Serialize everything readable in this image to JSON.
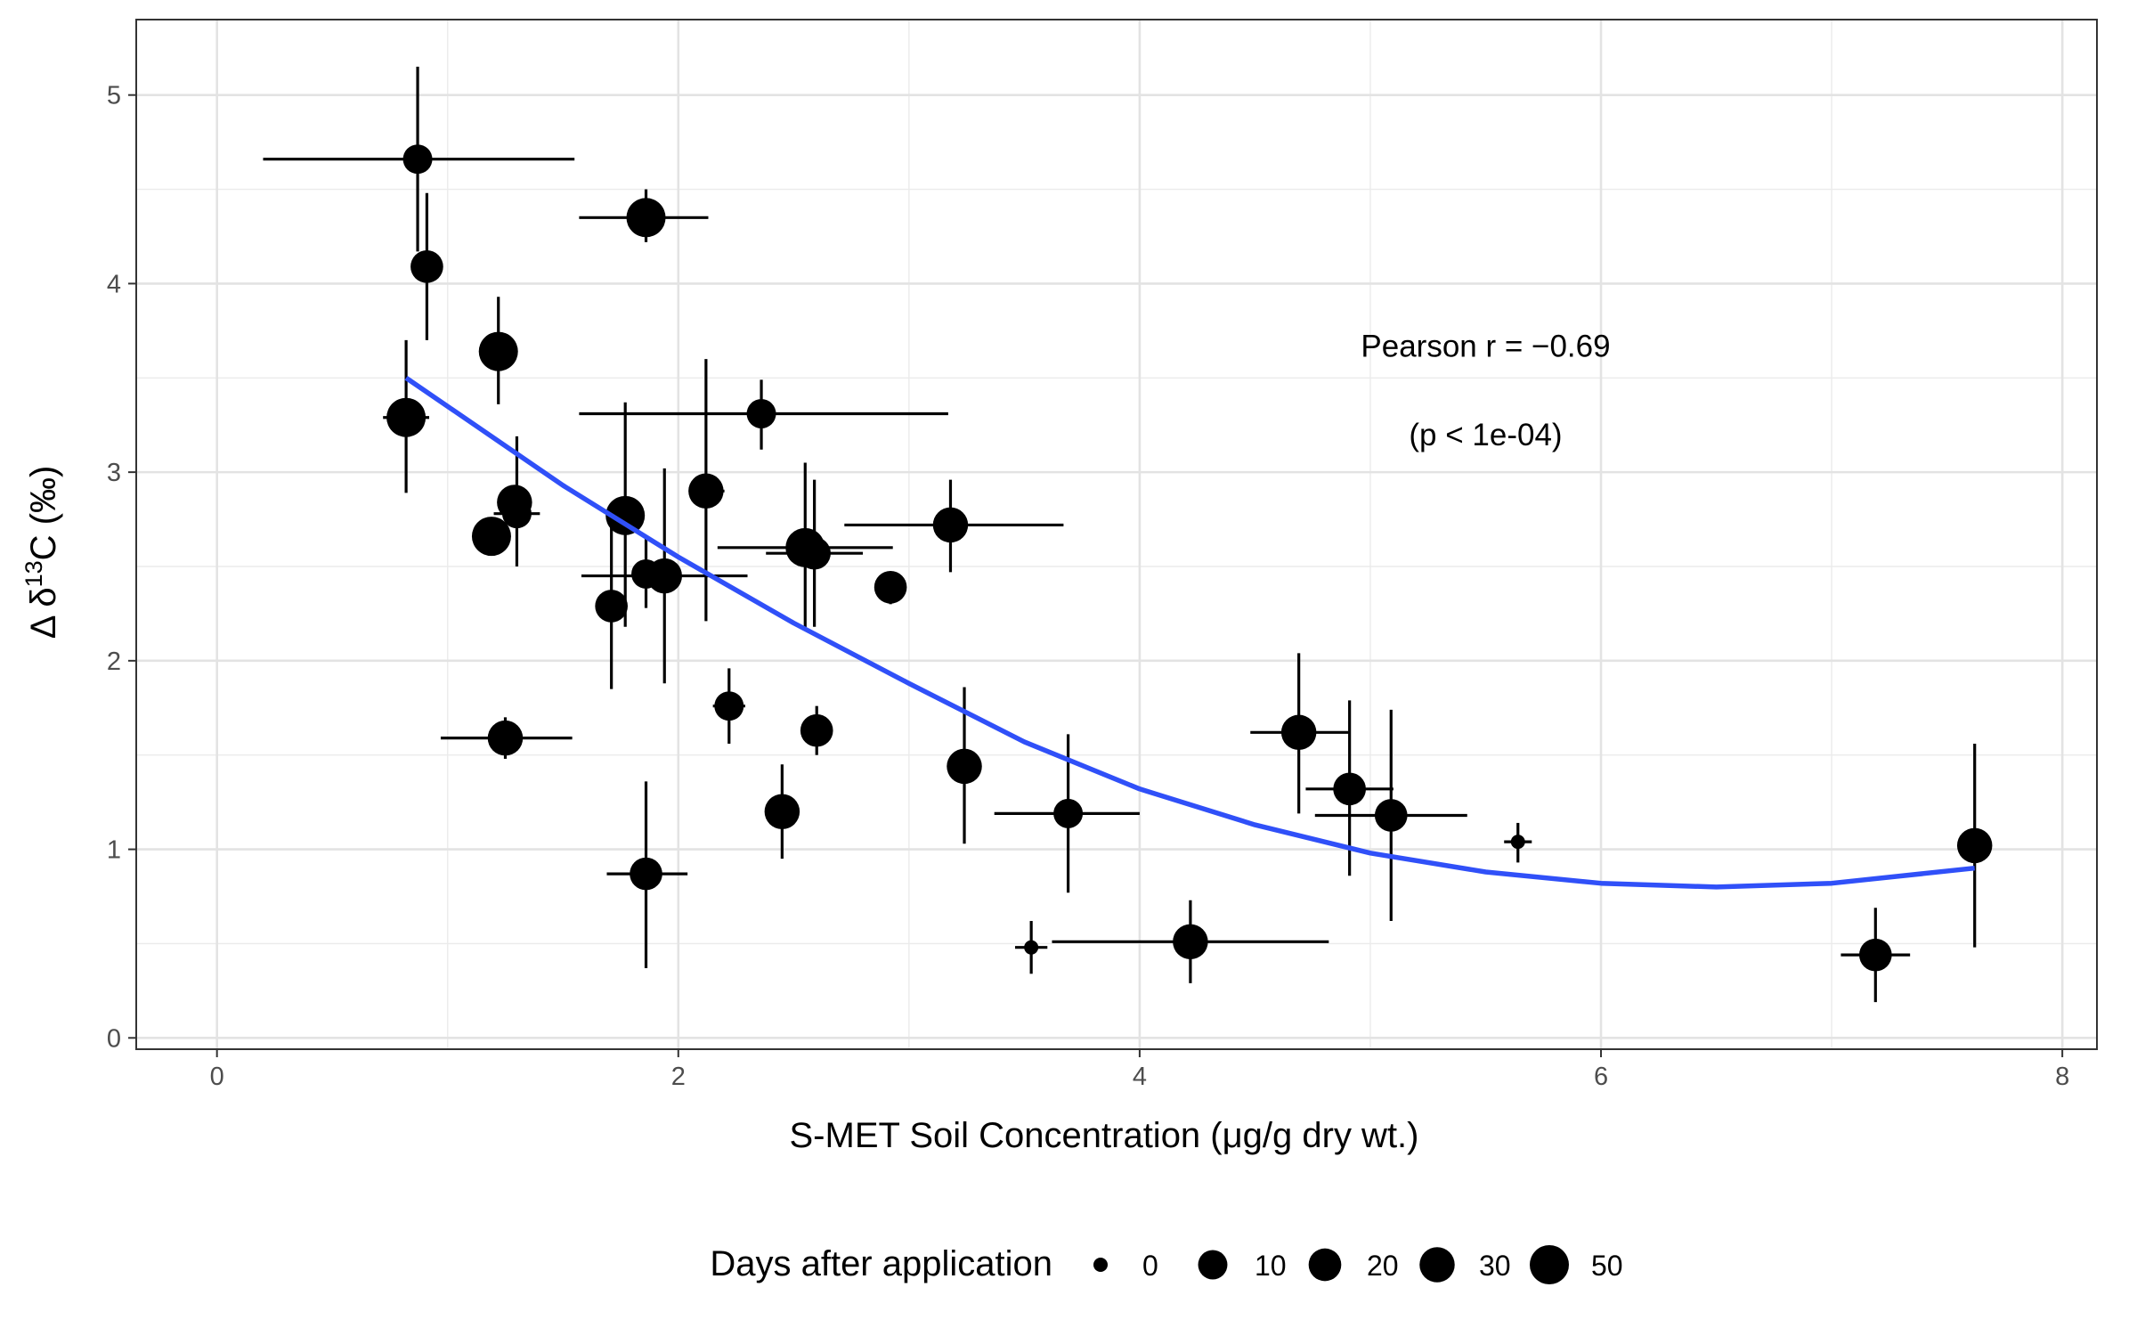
{
  "chart_data": {
    "type": "scatter",
    "xlabel": "S-MET Soil Concentration  (μg/g dry wt.)",
    "ylabel_prefix": "Δ δ",
    "ylabel_sup": "13",
    "ylabel_suffix": "C (‰)",
    "xlim": [
      -0.35,
      8.15
    ],
    "ylim": [
      -0.06,
      5.4
    ],
    "x_ticks": [
      0,
      2,
      4,
      6,
      8
    ],
    "y_ticks": [
      0,
      1,
      2,
      3,
      4,
      5
    ],
    "x_tick_labels": [
      "0",
      "2",
      "4",
      "6",
      "8"
    ],
    "y_tick_labels": [
      "0",
      "1",
      "2",
      "3",
      "4",
      "5"
    ],
    "grid": true,
    "annotation": {
      "line1": "Pearson r = −0.69",
      "line2": "(p < 1e-04)",
      "x": 5.5,
      "y1": 3.67,
      "y2": 3.2
    },
    "legend": {
      "title": "Days after application",
      "position": "bottom",
      "levels": [
        0,
        10,
        20,
        30,
        50
      ],
      "labels": [
        "0",
        "10",
        "20",
        "30",
        "50"
      ]
    },
    "points": [
      {
        "x": 0.87,
        "y": 4.66,
        "xmin": 0.2,
        "xmax": 1.55,
        "ymin": 4.17,
        "ymax": 5.15,
        "days": 10
      },
      {
        "x": 0.91,
        "y": 4.09,
        "xmin": 0.91,
        "xmax": 0.91,
        "ymin": 3.7,
        "ymax": 4.48,
        "days": 20
      },
      {
        "x": 1.86,
        "y": 4.35,
        "xmin": 1.57,
        "xmax": 2.13,
        "ymin": 4.22,
        "ymax": 4.5,
        "days": 50
      },
      {
        "x": 1.22,
        "y": 3.64,
        "xmin": 1.22,
        "xmax": 1.22,
        "ymin": 3.36,
        "ymax": 3.93,
        "days": 50
      },
      {
        "x": 0.82,
        "y": 3.29,
        "xmin": 0.72,
        "xmax": 0.92,
        "ymin": 2.89,
        "ymax": 3.7,
        "days": 50
      },
      {
        "x": 2.36,
        "y": 3.31,
        "xmin": 1.57,
        "xmax": 3.17,
        "ymin": 3.12,
        "ymax": 3.49,
        "days": 10
      },
      {
        "x": 1.3,
        "y": 2.78,
        "xmin": 1.2,
        "xmax": 1.4,
        "ymin": 2.5,
        "ymax": 3.19,
        "days": 10
      },
      {
        "x": 1.29,
        "y": 2.84,
        "xmin": 1.29,
        "xmax": 1.29,
        "ymin": 2.84,
        "ymax": 2.84,
        "days": 30
      },
      {
        "x": 1.19,
        "y": 2.66,
        "xmin": 1.19,
        "xmax": 1.19,
        "ymin": 2.66,
        "ymax": 2.66,
        "days": 50
      },
      {
        "x": 1.77,
        "y": 2.77,
        "xmin": 1.77,
        "xmax": 1.77,
        "ymin": 2.18,
        "ymax": 3.37,
        "days": 50
      },
      {
        "x": 2.12,
        "y": 2.9,
        "xmin": 2.05,
        "xmax": 2.2,
        "ymin": 2.21,
        "ymax": 3.6,
        "days": 30
      },
      {
        "x": 2.55,
        "y": 2.6,
        "xmin": 2.17,
        "xmax": 2.93,
        "ymin": 2.17,
        "ymax": 3.05,
        "days": 50
      },
      {
        "x": 2.59,
        "y": 2.57,
        "xmin": 2.38,
        "xmax": 2.8,
        "ymin": 2.18,
        "ymax": 2.96,
        "days": 20
      },
      {
        "x": 3.18,
        "y": 2.72,
        "xmin": 2.72,
        "xmax": 3.67,
        "ymin": 2.47,
        "ymax": 2.96,
        "days": 30
      },
      {
        "x": 1.86,
        "y": 2.46,
        "xmin": 1.86,
        "xmax": 1.86,
        "ymin": 2.28,
        "ymax": 2.65,
        "days": 10
      },
      {
        "x": 1.94,
        "y": 2.45,
        "xmin": 1.58,
        "xmax": 2.3,
        "ymin": 1.88,
        "ymax": 3.02,
        "days": 30
      },
      {
        "x": 1.71,
        "y": 2.29,
        "xmin": 1.71,
        "xmax": 1.71,
        "ymin": 1.85,
        "ymax": 2.72,
        "days": 20
      },
      {
        "x": 2.92,
        "y": 2.39,
        "xmin": 2.86,
        "xmax": 2.98,
        "ymin": 2.3,
        "ymax": 2.47,
        "days": 20
      },
      {
        "x": 2.22,
        "y": 1.76,
        "xmin": 2.15,
        "xmax": 2.29,
        "ymin": 1.56,
        "ymax": 1.96,
        "days": 10
      },
      {
        "x": 2.6,
        "y": 1.63,
        "xmin": 2.6,
        "xmax": 2.6,
        "ymin": 1.5,
        "ymax": 1.76,
        "days": 20
      },
      {
        "x": 1.25,
        "y": 1.59,
        "xmin": 0.97,
        "xmax": 1.54,
        "ymin": 1.48,
        "ymax": 1.7,
        "days": 30
      },
      {
        "x": 3.24,
        "y": 1.44,
        "xmin": 3.24,
        "xmax": 3.24,
        "ymin": 1.03,
        "ymax": 1.86,
        "days": 30
      },
      {
        "x": 2.45,
        "y": 1.2,
        "xmin": 2.45,
        "xmax": 2.45,
        "ymin": 0.95,
        "ymax": 1.45,
        "days": 30
      },
      {
        "x": 3.69,
        "y": 1.19,
        "xmin": 3.37,
        "xmax": 4.0,
        "ymin": 0.77,
        "ymax": 1.61,
        "days": 10
      },
      {
        "x": 1.86,
        "y": 0.87,
        "xmin": 1.69,
        "xmax": 2.04,
        "ymin": 0.37,
        "ymax": 1.36,
        "days": 20
      },
      {
        "x": 4.69,
        "y": 1.62,
        "xmin": 4.48,
        "xmax": 4.91,
        "ymin": 1.19,
        "ymax": 2.04,
        "days": 30
      },
      {
        "x": 4.91,
        "y": 1.32,
        "xmin": 4.72,
        "xmax": 5.1,
        "ymin": 0.86,
        "ymax": 1.79,
        "days": 20
      },
      {
        "x": 5.09,
        "y": 1.18,
        "xmin": 4.76,
        "xmax": 5.42,
        "ymin": 0.62,
        "ymax": 1.74,
        "days": 20
      },
      {
        "x": 5.64,
        "y": 1.04,
        "xmin": 5.58,
        "xmax": 5.7,
        "ymin": 0.93,
        "ymax": 1.14,
        "days": 0
      },
      {
        "x": 3.53,
        "y": 0.48,
        "xmin": 3.46,
        "xmax": 3.6,
        "ymin": 0.34,
        "ymax": 0.62,
        "days": 0
      },
      {
        "x": 4.22,
        "y": 0.51,
        "xmin": 3.62,
        "xmax": 4.82,
        "ymin": 0.29,
        "ymax": 0.73,
        "days": 30
      },
      {
        "x": 7.19,
        "y": 0.44,
        "xmin": 7.04,
        "xmax": 7.34,
        "ymin": 0.19,
        "ymax": 0.69,
        "days": 20
      },
      {
        "x": 7.62,
        "y": 1.02,
        "xmin": 7.55,
        "xmax": 7.69,
        "ymin": 0.48,
        "ymax": 1.56,
        "days": 30
      }
    ],
    "fit": {
      "color": "#3050f8",
      "x": [
        0.82,
        1.5,
        2.0,
        2.5,
        3.0,
        3.5,
        4.0,
        4.5,
        5.0,
        5.5,
        6.0,
        6.5,
        7.0,
        7.62
      ],
      "y": [
        3.5,
        2.93,
        2.55,
        2.2,
        1.88,
        1.57,
        1.32,
        1.13,
        0.98,
        0.88,
        0.82,
        0.8,
        0.82,
        0.9
      ]
    }
  }
}
